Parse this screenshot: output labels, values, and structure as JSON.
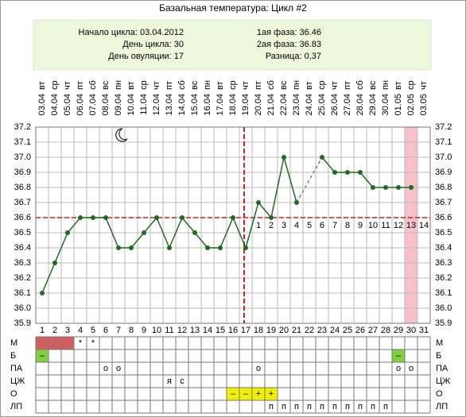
{
  "chart_data": {
    "type": "line",
    "title": "Базальная температура: Цикл #2",
    "summary": {
      "left": [
        "Начало цикла: 03.04.2012",
        "День цикла: 30",
        "День овуляции: 17"
      ],
      "right": [
        "1ая фаза: 36.46",
        "2ая фаза: 36.83",
        "Разница: 0,37"
      ]
    },
    "x": [
      1,
      2,
      3,
      4,
      5,
      6,
      7,
      8,
      9,
      10,
      11,
      12,
      13,
      14,
      15,
      16,
      17,
      18,
      19,
      20,
      21,
      22,
      23,
      24,
      25,
      26,
      27,
      28,
      29,
      30,
      31
    ],
    "xlim": [
      0.5,
      31.5
    ],
    "weekdays": [
      "вт",
      "ср",
      "чт",
      "пт",
      "сб",
      "вс",
      "пн",
      "вт",
      "ср",
      "чт",
      "пт",
      "сб",
      "вс",
      "пн",
      "вт",
      "ср",
      "чт",
      "пт",
      "сб",
      "вс",
      "пн",
      "вт",
      "ср",
      "чт",
      "пт",
      "сб",
      "вс",
      "пн",
      "вт",
      "ср",
      "чт"
    ],
    "dates": [
      "03.04",
      "04.04",
      "05.04",
      "06.04",
      "07.04",
      "08.04",
      "09.04",
      "10.04",
      "11.04",
      "12.04",
      "13.04",
      "14.04",
      "15.04",
      "16.04",
      "17.04",
      "18.04",
      "19.04",
      "20.04",
      "21.04",
      "22.04",
      "23.04",
      "24.04",
      "25.04",
      "26.04",
      "27.04",
      "28.04",
      "29.04",
      "30.04",
      "01.05",
      "02.05",
      "03.05"
    ],
    "series": [
      {
        "color": "#1f6b1f",
        "values": [
          36.1,
          36.3,
          36.5,
          36.6,
          36.6,
          36.6,
          36.4,
          36.4,
          36.5,
          36.6,
          36.4,
          36.6,
          36.5,
          36.4,
          36.4,
          36.6,
          36.4,
          36.7,
          36.6,
          37.0,
          36.7,
          null,
          37.0,
          36.9,
          36.9,
          36.9,
          36.8,
          36.8,
          36.8,
          36.8,
          null
        ]
      }
    ],
    "ylim": [
      35.9,
      37.2
    ],
    "yticks": [
      {
        "value": 37.2,
        "label": "37.2"
      },
      37.1,
      {
        "value": 37.0,
        "label": "37.0"
      },
      36.9,
      36.8,
      36.7,
      36.6,
      36.5,
      36.4,
      36.3,
      36.2,
      36.1,
      {
        "value": 36.0,
        "label": "36.0"
      },
      35.9
    ],
    "grid": true,
    "coverline": 36.6,
    "ovulation_day": 17,
    "current_day": 30,
    "phase2_start_day": 18,
    "phase2_day_labels": [
      1,
      2,
      3,
      4,
      5,
      6,
      7,
      8,
      9,
      10,
      11,
      12,
      13,
      14
    ],
    "symptom_table": {
      "rows": [
        {
          "label": "М",
          "fill": {
            "color": "#d06060",
            "days": [
              1,
              2,
              3
            ]
          },
          "cells": [
            null,
            null,
            null,
            "*",
            "*",
            null,
            null,
            null,
            null,
            null,
            null,
            null,
            null,
            null,
            null,
            null,
            null,
            null,
            null,
            null,
            null,
            null,
            null,
            null,
            null,
            null,
            null,
            null,
            null,
            null,
            null
          ],
          "text_color": "#e05050"
        },
        {
          "label": "Б",
          "fill": {
            "color": "#80d040",
            "days": [
              1,
              29
            ]
          },
          "cells": [
            "–",
            null,
            null,
            null,
            null,
            null,
            null,
            null,
            null,
            null,
            null,
            null,
            null,
            null,
            null,
            null,
            null,
            null,
            null,
            null,
            null,
            null,
            null,
            null,
            null,
            null,
            null,
            null,
            "–",
            null,
            null
          ]
        },
        {
          "label": "ПА",
          "cells": [
            null,
            null,
            null,
            null,
            null,
            "о",
            "о",
            null,
            null,
            null,
            null,
            null,
            null,
            null,
            null,
            null,
            null,
            "о",
            null,
            null,
            null,
            null,
            null,
            null,
            null,
            null,
            null,
            null,
            "о",
            "о",
            null
          ],
          "text_color": "#e05050"
        },
        {
          "label": "ЦЖ",
          "cells": [
            null,
            null,
            null,
            null,
            null,
            null,
            null,
            null,
            null,
            null,
            "я",
            "с",
            null,
            null,
            null,
            null,
            null,
            null,
            null,
            null,
            null,
            null,
            null,
            null,
            null,
            null,
            null,
            null,
            null,
            null,
            null
          ]
        },
        {
          "label": "О",
          "fill": {
            "color": "#f0f000",
            "days": [
              16,
              17,
              18,
              19
            ]
          },
          "cells": [
            null,
            null,
            null,
            null,
            null,
            null,
            null,
            null,
            null,
            null,
            null,
            null,
            null,
            null,
            null,
            "–",
            "–",
            "+",
            "+",
            null,
            null,
            null,
            null,
            null,
            null,
            null,
            null,
            null,
            null,
            null,
            null
          ]
        },
        {
          "label": "ЛП",
          "cells": [
            null,
            null,
            null,
            null,
            null,
            null,
            null,
            null,
            null,
            null,
            null,
            null,
            null,
            null,
            null,
            null,
            null,
            null,
            "п",
            "п",
            "п",
            "п",
            "п",
            "п",
            "п",
            "п",
            "п",
            "п",
            null,
            null,
            null
          ]
        }
      ]
    }
  }
}
